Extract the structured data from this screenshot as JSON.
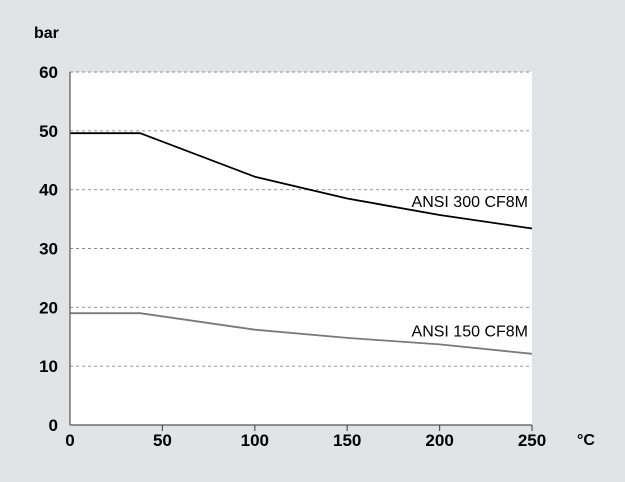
{
  "chart_data": {
    "type": "line",
    "xlabel": "°C",
    "ylabel": "bar",
    "xlim": [
      0,
      250
    ],
    "ylim": [
      0,
      60
    ],
    "x_ticks": [
      "0",
      "50",
      "100",
      "150",
      "200",
      "250"
    ],
    "y_ticks": [
      "0",
      "10",
      "20",
      "30",
      "40",
      "50",
      "60"
    ],
    "grid": "horizontal dashed",
    "series": [
      {
        "name": "ANSI 300 CF8M",
        "color": "#000000",
        "x": [
          0,
          38,
          100,
          150,
          200,
          250
        ],
        "y": [
          49.6,
          49.6,
          42.2,
          38.5,
          35.7,
          33.4
        ]
      },
      {
        "name": "ANSI 150 CF8M",
        "color": "#7a7a7a",
        "x": [
          0,
          38,
          100,
          150,
          200,
          250
        ],
        "y": [
          19.0,
          19.0,
          16.2,
          14.8,
          13.7,
          12.1
        ]
      }
    ]
  }
}
